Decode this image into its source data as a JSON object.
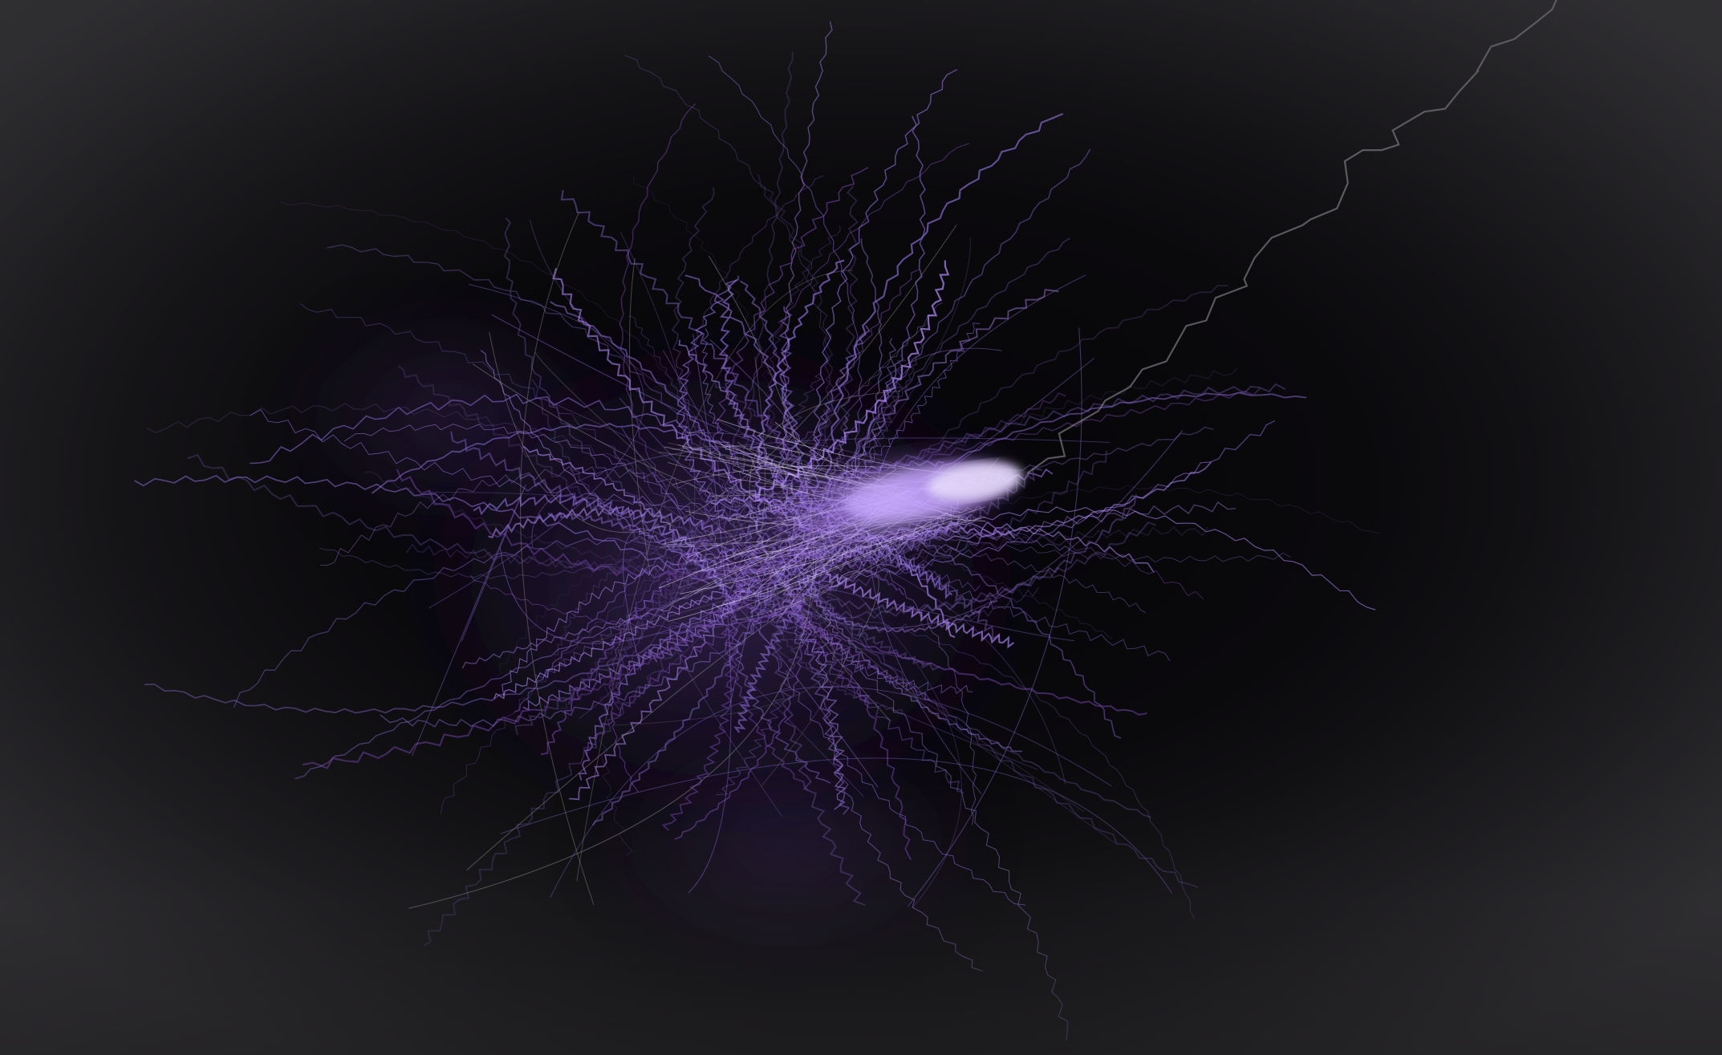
{
  "scene": {
    "subject": "particle-trail-visualization",
    "colors": {
      "background": "#0b0a0c",
      "edge_glow": "#2a292c",
      "core_glow": "#b48cff",
      "core_white": "#e8e2f4",
      "trail_violet": "#8a6bd6",
      "trail_purple": "#6a3f9e",
      "trail_dim": "#4a3a6e",
      "zigzag_gray": "#9a97a0"
    }
  }
}
